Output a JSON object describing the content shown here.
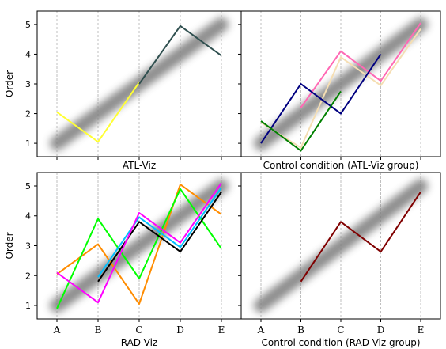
{
  "chart_data": [
    {
      "type": "line",
      "xlabel": "ATL-Viz",
      "ylabel": "Order",
      "categories": [
        "A",
        "B",
        "C",
        "D",
        "E"
      ],
      "ylim": [
        0.55,
        5.45
      ],
      "yticks": [
        1,
        2,
        3,
        4,
        5
      ],
      "show_x_tick_labels": false,
      "show_y_tick_labels": true,
      "band": {
        "color": "#808080",
        "from": [
          1,
          1
        ],
        "to": [
          5,
          5
        ]
      },
      "grid": "vertical-dashed",
      "series": [
        {
          "color": "#ffff33",
          "points": [
            [
              1,
              2.05
            ],
            [
              2,
              1.05
            ],
            [
              3,
              3.05
            ]
          ]
        },
        {
          "color": "#2f4f4f",
          "points": [
            [
              3,
              3.0
            ],
            [
              4,
              4.95
            ],
            [
              5,
              3.95
            ]
          ]
        }
      ]
    },
    {
      "type": "line",
      "xlabel": "Control condition (ATL-Viz group)",
      "ylabel": "",
      "categories": [
        "A",
        "B",
        "C",
        "D",
        "E"
      ],
      "ylim": [
        0.55,
        5.45
      ],
      "yticks": [
        1,
        2,
        3,
        4,
        5
      ],
      "show_x_tick_labels": false,
      "show_y_tick_labels": false,
      "band": {
        "color": "#808080",
        "from": [
          1,
          1
        ],
        "to": [
          5,
          5
        ]
      },
      "grid": "vertical-dashed",
      "series": [
        {
          "color": "#f5deb3",
          "points": [
            [
              1,
              1.7
            ],
            [
              2,
              0.85
            ],
            [
              3,
              3.9
            ],
            [
              4,
              2.95
            ],
            [
              5,
              4.85
            ]
          ]
        },
        {
          "color": "#ff69b4",
          "points": [
            [
              2,
              2.2
            ],
            [
              3,
              4.1
            ],
            [
              4,
              3.1
            ],
            [
              5,
              5.05
            ]
          ]
        },
        {
          "color": "#000080",
          "points": [
            [
              1,
              1.0
            ],
            [
              2,
              3.0
            ],
            [
              3,
              2.0
            ],
            [
              4,
              4.0
            ]
          ]
        },
        {
          "color": "#008000",
          "points": [
            [
              1,
              1.75
            ],
            [
              2,
              0.75
            ],
            [
              3,
              2.75
            ]
          ]
        }
      ]
    },
    {
      "type": "line",
      "xlabel": "RAD-Viz",
      "ylabel": "Order",
      "categories": [
        "A",
        "B",
        "C",
        "D",
        "E"
      ],
      "ylim": [
        0.55,
        5.45
      ],
      "yticks": [
        1,
        2,
        3,
        4,
        5
      ],
      "show_x_tick_labels": true,
      "show_y_tick_labels": true,
      "band": {
        "color": "#808080",
        "from": [
          1,
          1
        ],
        "to": [
          5,
          5
        ]
      },
      "grid": "vertical-dashed",
      "series": [
        {
          "color": "#ff8c00",
          "points": [
            [
              1,
              2.05
            ],
            [
              2,
              3.05
            ],
            [
              3,
              1.05
            ],
            [
              4,
              5.05
            ],
            [
              5,
              4.05
            ]
          ]
        },
        {
          "color": "#00ff00",
          "points": [
            [
              1,
              0.9
            ],
            [
              2,
              3.9
            ],
            [
              3,
              1.9
            ],
            [
              4,
              4.9
            ],
            [
              5,
              2.9
            ]
          ]
        },
        {
          "color": "#000000",
          "points": [
            [
              2,
              1.8
            ],
            [
              3,
              3.8
            ],
            [
              4,
              2.8
            ],
            [
              5,
              4.8
            ]
          ]
        },
        {
          "color": "#00bfff",
          "points": [
            [
              2,
              1.95
            ],
            [
              3,
              3.95
            ],
            [
              4,
              2.95
            ],
            [
              5,
              4.95
            ]
          ]
        },
        {
          "color": "#ff00ff",
          "points": [
            [
              1,
              2.1
            ],
            [
              2,
              1.1
            ],
            [
              3,
              4.1
            ],
            [
              4,
              3.1
            ],
            [
              5,
              5.1
            ]
          ]
        }
      ]
    },
    {
      "type": "line",
      "xlabel": "Control condition (RAD-Viz group)",
      "ylabel": "",
      "categories": [
        "A",
        "B",
        "C",
        "D",
        "E"
      ],
      "ylim": [
        0.55,
        5.45
      ],
      "yticks": [
        1,
        2,
        3,
        4,
        5
      ],
      "show_x_tick_labels": true,
      "show_y_tick_labels": false,
      "band": {
        "color": "#808080",
        "from": [
          1,
          1
        ],
        "to": [
          5,
          5
        ]
      },
      "grid": "vertical-dashed",
      "series": [
        {
          "color": "#800000",
          "points": [
            [
              2,
              1.8
            ],
            [
              3,
              3.8
            ],
            [
              4,
              2.8
            ],
            [
              5,
              4.8
            ]
          ]
        }
      ]
    }
  ]
}
